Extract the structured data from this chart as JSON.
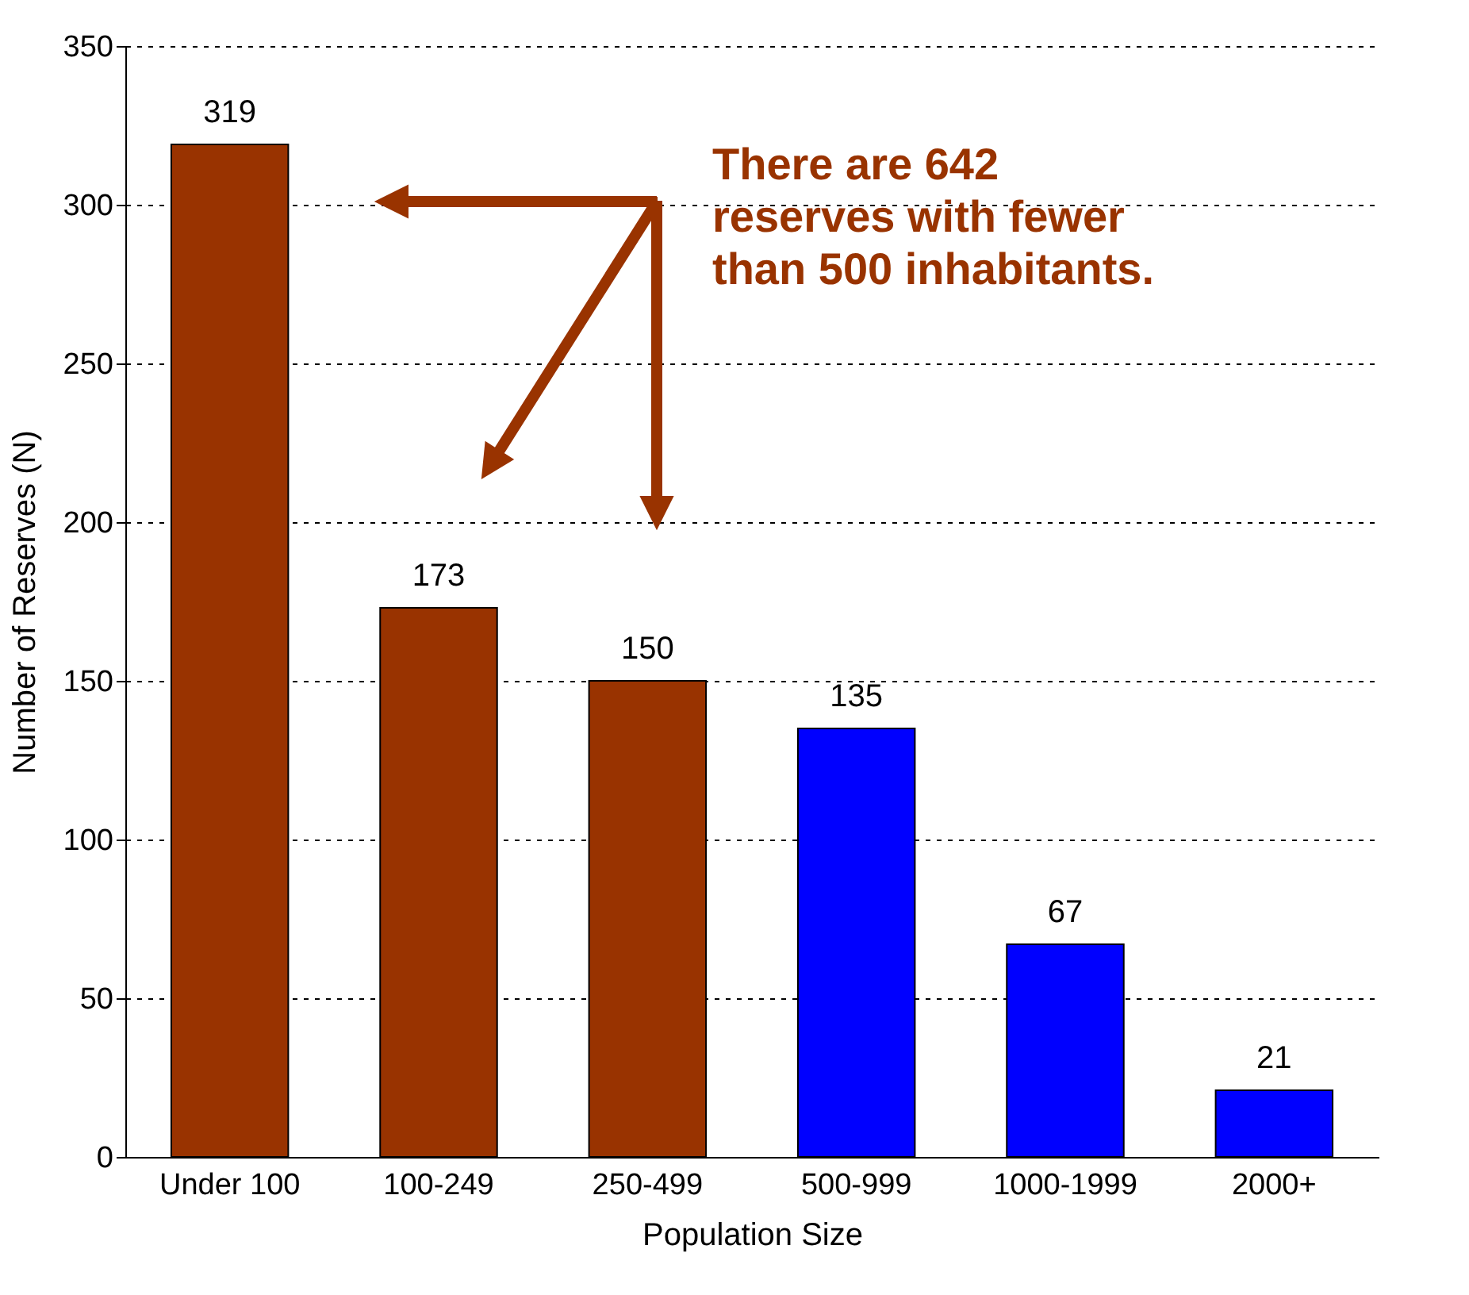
{
  "chart_data": {
    "type": "bar",
    "xlabel": "Population Size",
    "ylabel": "Number of Reserves (N)",
    "categories": [
      "Under 100",
      "100-249",
      "250-499",
      "500-999",
      "1000-1999",
      "2000+"
    ],
    "values": [
      319,
      173,
      150,
      135,
      67,
      21
    ],
    "colors": [
      "#993300",
      "#993300",
      "#993300",
      "#0000ff",
      "#0000ff",
      "#0000ff"
    ],
    "ylim": [
      0,
      350
    ],
    "yticks": [
      0,
      50,
      100,
      150,
      200,
      250,
      300,
      350
    ],
    "grid": "y",
    "data_labels": true,
    "annotations": [
      "There are 642 reserves with fewer than 500 inhabitants."
    ]
  }
}
